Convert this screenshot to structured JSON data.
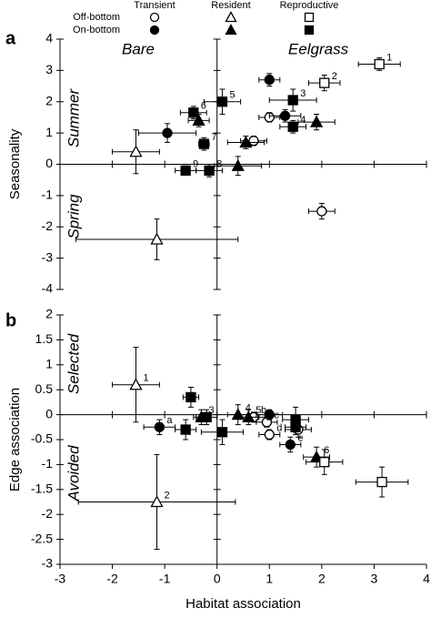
{
  "chart_data": [
    {
      "type": "scatter",
      "panel": "a",
      "ylabel": "Seasonality",
      "xlim": [
        -3,
        4
      ],
      "xticks": [
        -3,
        -2,
        -1,
        0,
        1,
        2,
        3,
        4
      ],
      "show_xtick_labels": false,
      "ylim": [
        -4,
        4
      ],
      "yticks": [
        -4,
        -3,
        -2,
        -1,
        0,
        1,
        2,
        3,
        4
      ],
      "annotations": [
        "Bare",
        "Eelgrass",
        "Summer",
        "Spring"
      ],
      "series": [
        {
          "marker": "circle",
          "filled": false,
          "color": "#000000",
          "x": [
            1.0,
            0.7,
            2.0
          ],
          "y": [
            1.5,
            0.75,
            -1.5
          ],
          "xerr": [
            0.2,
            0.25,
            0.25
          ],
          "yerr": [
            0.15,
            0.15,
            0.25
          ],
          "labels": [
            null,
            null,
            null
          ]
        },
        {
          "marker": "circle",
          "filled": true,
          "color": "#000000",
          "x": [
            -0.95,
            1.0,
            1.3
          ],
          "y": [
            1.0,
            2.7,
            1.55
          ],
          "xerr": [
            0.55,
            0.2,
            0.3
          ],
          "yerr": [
            0.3,
            0.2,
            0.2
          ],
          "labels": [
            null,
            null,
            null
          ]
        },
        {
          "marker": "triangle",
          "filled": false,
          "color": "#000000",
          "x": [
            -1.55,
            -1.15
          ],
          "y": [
            0.4,
            -2.4
          ],
          "xerr": [
            0.45,
            1.55
          ],
          "yerr": [
            0.7,
            0.65
          ],
          "labels": [
            null,
            null
          ]
        },
        {
          "marker": "triangle",
          "filled": true,
          "color": "#000000",
          "x": [
            -0.35,
            0.55,
            1.9,
            0.4
          ],
          "y": [
            1.4,
            0.7,
            1.35,
            -0.05
          ],
          "xerr": [
            0.2,
            0.35,
            0.35,
            0.45
          ],
          "yerr": [
            0.2,
            0.2,
            0.25,
            0.3
          ],
          "labels": [
            null,
            null,
            null,
            null
          ]
        },
        {
          "marker": "square",
          "filled": false,
          "color": "#000000",
          "x": [
            3.1,
            2.05
          ],
          "y": [
            3.2,
            2.6
          ],
          "xerr": [
            0.4,
            0.3
          ],
          "yerr": [
            0.2,
            0.25
          ],
          "labels": [
            "1",
            "2"
          ]
        },
        {
          "marker": "square",
          "filled": true,
          "color": "#000000",
          "x": [
            1.45,
            1.45,
            0.1,
            -0.45,
            -0.25,
            -0.15,
            -0.6
          ],
          "y": [
            2.05,
            1.2,
            2.0,
            1.65,
            0.65,
            -0.2,
            -0.2
          ],
          "xerr": [
            0.45,
            0.25,
            0.35,
            0.25,
            0.1,
            0.25,
            0.2
          ],
          "yerr": [
            0.35,
            0.2,
            0.4,
            0.2,
            0.2,
            0.2,
            0.15
          ],
          "labels": [
            "3",
            "4",
            "5",
            "6",
            "7",
            "8",
            "9"
          ]
        }
      ]
    },
    {
      "type": "scatter",
      "panel": "b",
      "ylabel": "Edge association",
      "xlabel": "Habitat association",
      "xlim": [
        -3,
        4
      ],
      "xticks": [
        -3,
        -2,
        -1,
        0,
        1,
        2,
        3,
        4
      ],
      "show_xtick_labels": true,
      "ylim": [
        -3,
        2
      ],
      "yticks": [
        -3,
        -2.5,
        -2,
        -1.5,
        -1,
        -0.5,
        0,
        0.5,
        1,
        1.5,
        2
      ],
      "annotations": [
        "Selected",
        "Avoided"
      ],
      "series": [
        {
          "marker": "circle",
          "filled": false,
          "color": "#000000",
          "x": [
            0.7,
            0.95,
            1.0,
            1.55
          ],
          "y": [
            -0.05,
            -0.15,
            -0.4,
            -0.3
          ],
          "xerr": [
            0.25,
            0.2,
            0.2,
            0.25
          ],
          "yerr": [
            0.1,
            0.1,
            0.1,
            0.15
          ],
          "labels": [
            "b",
            "c",
            "d",
            null
          ]
        },
        {
          "marker": "circle",
          "filled": true,
          "color": "#000000",
          "x": [
            -1.1,
            1.0,
            1.4
          ],
          "y": [
            -0.25,
            0.0,
            -0.6
          ],
          "xerr": [
            0.3,
            0.25,
            0.2
          ],
          "yerr": [
            0.15,
            0.1,
            0.15
          ],
          "labels": [
            "a",
            null,
            "e"
          ]
        },
        {
          "marker": "triangle",
          "filled": false,
          "color": "#000000",
          "x": [
            -1.55,
            -1.15
          ],
          "y": [
            0.6,
            -1.75
          ],
          "xerr": [
            0.45,
            1.5
          ],
          "yerr": [
            0.75,
            0.95
          ],
          "labels": [
            "1",
            "2"
          ]
        },
        {
          "marker": "triangle",
          "filled": true,
          "color": "#000000",
          "x": [
            -0.3,
            0.4,
            0.6,
            1.9
          ],
          "y": [
            -0.05,
            0.0,
            -0.05,
            -0.85
          ],
          "xerr": [
            0.15,
            0.2,
            0.2,
            0.25
          ],
          "yerr": [
            0.15,
            0.2,
            0.15,
            0.2
          ],
          "labels": [
            "3",
            "4",
            "5",
            "6"
          ]
        },
        {
          "marker": "square",
          "filled": false,
          "color": "#000000",
          "x": [
            3.15,
            2.05
          ],
          "y": [
            -1.35,
            -0.95
          ],
          "xerr": [
            0.5,
            0.35
          ],
          "yerr": [
            0.3,
            0.25
          ],
          "labels": [
            null,
            null
          ]
        },
        {
          "marker": "square",
          "filled": true,
          "color": "#000000",
          "x": [
            -0.5,
            -0.6,
            -0.2,
            0.1,
            1.5,
            1.5
          ],
          "y": [
            0.35,
            -0.3,
            -0.05,
            -0.35,
            -0.1,
            -0.25
          ],
          "xerr": [
            0.15,
            0.2,
            0.2,
            0.4,
            0.25,
            0.2
          ],
          "yerr": [
            0.2,
            0.2,
            0.15,
            0.25,
            0.25,
            0.15
          ],
          "labels": [
            null,
            null,
            null,
            null,
            null,
            null
          ]
        }
      ]
    }
  ],
  "legend": {
    "columns": [
      "Transient",
      "Resident",
      "Reproductive"
    ],
    "rows": [
      "Off-bottom",
      "On-bottom"
    ],
    "markers": [
      "circle",
      "triangle",
      "square"
    ]
  }
}
